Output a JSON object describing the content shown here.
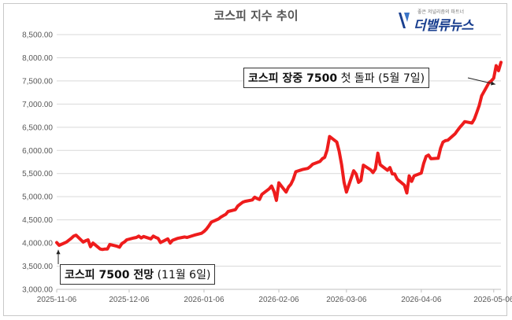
{
  "chart_data": {
    "type": "line",
    "title": "코스피 지수 추이",
    "xlabel": "",
    "ylabel": "",
    "ylim": [
      3000,
      8500
    ],
    "y_ticks": [
      3000,
      3500,
      4000,
      4500,
      5000,
      5500,
      6000,
      6500,
      7000,
      7500,
      8000,
      8500
    ],
    "y_tick_labels": [
      "3,000.00",
      "3,500.00",
      "4,000.00",
      "4,500.00",
      "5,000.00",
      "5,500.00",
      "6,000.00",
      "6,500.00",
      "7,000.00",
      "7,500.00",
      "8,000.00",
      "8,500.00"
    ],
    "x_tick_labels": [
      "2025-11-06",
      "2025-12-06",
      "2026-01-06",
      "2026-02-06",
      "2026-03-06",
      "2026-04-06",
      "2026-05-06"
    ],
    "x_range": [
      "2025-11-06",
      "2026-05-09"
    ],
    "grid": "horizontal",
    "line_color": "#ee1c1c",
    "series": [
      {
        "x": [
          "2025-11-06",
          "2025-11-07",
          "2025-11-10",
          "2025-11-11",
          "2025-11-12",
          "2025-11-13",
          "2025-11-14",
          "2025-11-17",
          "2025-11-18",
          "2025-11-19",
          "2025-11-20",
          "2025-11-21",
          "2025-11-24",
          "2025-11-25",
          "2025-11-26",
          "2025-11-27",
          "2025-11-28",
          "2025-12-01",
          "2025-12-02",
          "2025-12-03",
          "2025-12-04",
          "2025-12-05",
          "2025-12-08",
          "2025-12-09",
          "2025-12-10",
          "2025-12-11",
          "2025-12-12",
          "2025-12-15",
          "2025-12-16",
          "2025-12-17",
          "2025-12-18",
          "2025-12-19",
          "2025-12-22",
          "2025-12-23",
          "2025-12-24",
          "2025-12-26",
          "2025-12-29",
          "2025-12-30",
          "2026-01-02",
          "2026-01-05",
          "2026-01-06",
          "2026-01-07",
          "2026-01-08",
          "2026-01-09",
          "2026-01-12",
          "2026-01-13",
          "2026-01-14",
          "2026-01-15",
          "2026-01-16",
          "2026-01-19",
          "2026-01-20",
          "2026-01-21",
          "2026-01-22",
          "2026-01-23",
          "2026-01-26",
          "2026-01-27",
          "2026-01-28",
          "2026-01-29",
          "2026-01-30",
          "2026-02-02",
          "2026-02-03",
          "2026-02-04",
          "2026-02-05",
          "2026-02-06",
          "2026-02-09",
          "2026-02-10",
          "2026-02-11",
          "2026-02-12",
          "2026-02-13",
          "2026-02-16",
          "2026-02-17",
          "2026-02-18",
          "2026-02-19",
          "2026-02-20",
          "2026-02-23",
          "2026-02-24",
          "2026-02-25",
          "2026-02-26",
          "2026-02-27",
          "2026-03-02",
          "2026-03-03",
          "2026-03-04",
          "2026-03-05",
          "2026-03-06",
          "2026-03-09",
          "2026-03-10",
          "2026-03-11",
          "2026-03-12",
          "2026-03-13",
          "2026-03-16",
          "2026-03-17",
          "2026-03-18",
          "2026-03-19",
          "2026-03-20",
          "2026-03-23",
          "2026-03-24",
          "2026-03-25",
          "2026-03-26",
          "2026-03-27",
          "2026-03-30",
          "2026-03-31",
          "2026-04-01",
          "2026-04-02",
          "2026-04-03",
          "2026-04-06",
          "2026-04-07",
          "2026-04-08",
          "2026-04-09",
          "2026-04-10",
          "2026-04-13",
          "2026-04-14",
          "2026-04-15",
          "2026-04-16",
          "2026-04-17",
          "2026-04-20",
          "2026-04-21",
          "2026-04-22",
          "2026-04-23",
          "2026-04-24",
          "2026-04-27",
          "2026-04-28",
          "2026-04-29",
          "2026-04-30",
          "2026-05-01",
          "2026-05-04",
          "2026-05-05",
          "2026-05-06",
          "2026-05-07",
          "2026-05-08",
          "2026-05-09"
        ],
        "values": [
          4010,
          3950,
          4020,
          4060,
          4100,
          4150,
          4170,
          4020,
          4050,
          4070,
          3920,
          4000,
          3870,
          3860,
          3870,
          3870,
          3970,
          3930,
          3910,
          3990,
          4020,
          4070,
          4110,
          4120,
          4150,
          4110,
          4140,
          4090,
          4150,
          4120,
          4100,
          4010,
          4090,
          4000,
          4060,
          4100,
          4130,
          4120,
          4170,
          4210,
          4250,
          4300,
          4370,
          4450,
          4520,
          4560,
          4590,
          4620,
          4680,
          4720,
          4800,
          4840,
          4880,
          4900,
          4930,
          4990,
          4960,
          4940,
          5050,
          5170,
          5230,
          5110,
          4920,
          5300,
          5100,
          5210,
          5270,
          5380,
          5540,
          5590,
          5600,
          5610,
          5650,
          5700,
          5760,
          5820,
          5850,
          6010,
          6300,
          6180,
          5980,
          5690,
          5310,
          5100,
          5560,
          5490,
          5310,
          5350,
          5680,
          5580,
          5520,
          5600,
          5940,
          5690,
          5570,
          5630,
          5490,
          5490,
          5380,
          5250,
          5080,
          5450,
          5330,
          5450,
          5510,
          5720,
          5870,
          5900,
          5820,
          5830,
          6050,
          6180,
          6210,
          6220,
          6360,
          6430,
          6500,
          6560,
          6620,
          6590,
          6680,
          6820,
          6970,
          7180,
          7460,
          7500,
          7560,
          7830,
          7720,
          7900
        ]
      }
    ],
    "annotations": [
      {
        "bold": "코스피 장중 7500",
        "rest": " 첫 돌파 (5월 7일)",
        "x": "2026-05-07",
        "y": 7460
      },
      {
        "bold": "코스피 7500 전망",
        "rest": " (11월 6일)",
        "x": "2025-11-06",
        "y": 3920
      }
    ]
  },
  "logo": {
    "tagline": "좋은 저널리즘의 파트너",
    "text": "더밸류뉴스",
    "brand_color": "#1a3f8f"
  }
}
